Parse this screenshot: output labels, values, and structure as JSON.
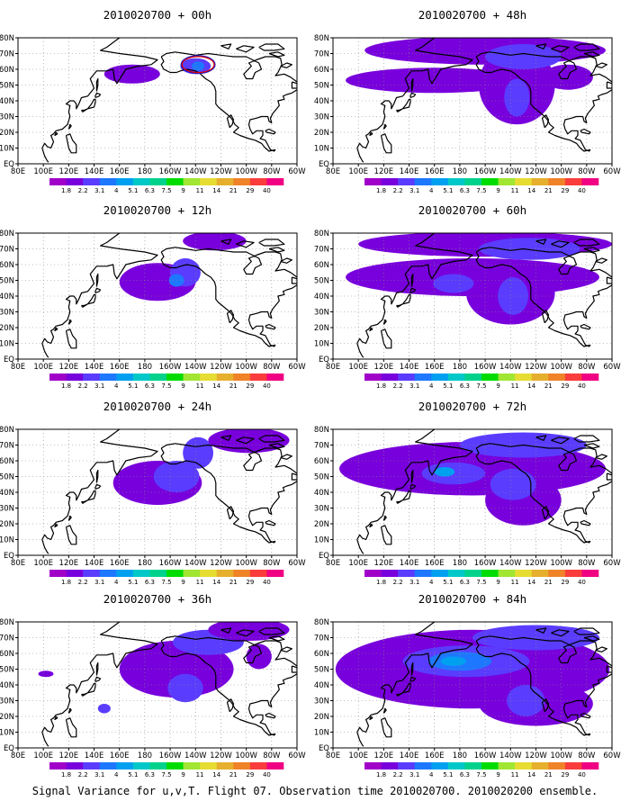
{
  "chart_data": {
    "type": "heatmap",
    "map_type": "filled contour map, North Pacific",
    "caption": "Signal Variance for u,v,T. Flight 07. Observation time 2010020700. 2010020200 ensemble.",
    "x_ticks": [
      "80E",
      "100E",
      "120E",
      "140E",
      "160E",
      "180",
      "160W",
      "140W",
      "120W",
      "100W",
      "80W",
      "60W"
    ],
    "y_ticks": [
      "EQ",
      "10N",
      "20N",
      "30N",
      "40N",
      "50N",
      "60N",
      "70N",
      "80N"
    ],
    "x_range_lon": [
      80,
      300
    ],
    "y_range_lat": [
      0,
      80
    ],
    "grid": true,
    "colorbar": {
      "labels": [
        "1.8",
        "2.2",
        "3.1",
        "4",
        "5.1",
        "6.3",
        "7.5",
        "9",
        "11",
        "14",
        "21",
        "29",
        "40"
      ],
      "colors": [
        "#a000c8",
        "#7800dc",
        "#5a3cff",
        "#1e78ff",
        "#00a0f0",
        "#00c8c8",
        "#00d28c",
        "#00dc00",
        "#a0e632",
        "#e6dc32",
        "#e6af2d",
        "#f08228",
        "#fa3c3c",
        "#f00082"
      ]
    },
    "panels": [
      {
        "title": "2010020700 + 00h",
        "blobs": [
          {
            "lon": 170,
            "lat": 57,
            "rx": 22,
            "ry": 6,
            "level": 1
          },
          {
            "lon": 220,
            "lat": 62,
            "rx": 12,
            "ry": 5,
            "level": 2
          },
          {
            "lon": 222,
            "lat": 62,
            "rx": 5,
            "ry": 3,
            "level": 3
          }
        ],
        "marker": {
          "lon": 222,
          "lat": 63
        }
      },
      {
        "title": "2010020700 + 12h",
        "blobs": [
          {
            "lon": 190,
            "lat": 49,
            "rx": 30,
            "ry": 12,
            "level": 1
          },
          {
            "lon": 212,
            "lat": 55,
            "rx": 12,
            "ry": 9,
            "level": 2
          },
          {
            "lon": 205,
            "lat": 50,
            "rx": 6,
            "ry": 4,
            "level": 3
          },
          {
            "lon": 235,
            "lat": 75,
            "rx": 25,
            "ry": 6,
            "level": 1
          }
        ]
      },
      {
        "title": "2010020700 + 24h",
        "blobs": [
          {
            "lon": 190,
            "lat": 46,
            "rx": 35,
            "ry": 14,
            "level": 1
          },
          {
            "lon": 205,
            "lat": 50,
            "rx": 18,
            "ry": 10,
            "level": 2
          },
          {
            "lon": 222,
            "lat": 65,
            "rx": 12,
            "ry": 10,
            "level": 2
          },
          {
            "lon": 262,
            "lat": 73,
            "rx": 32,
            "ry": 8,
            "level": 1
          }
        ]
      },
      {
        "title": "2010020700 + 36h",
        "blobs": [
          {
            "lon": 205,
            "lat": 50,
            "rx": 45,
            "ry": 18,
            "level": 1
          },
          {
            "lon": 230,
            "lat": 67,
            "rx": 28,
            "ry": 8,
            "level": 2
          },
          {
            "lon": 212,
            "lat": 38,
            "rx": 14,
            "ry": 9,
            "level": 2
          },
          {
            "lon": 148,
            "lat": 25,
            "rx": 5,
            "ry": 3,
            "level": 2
          },
          {
            "lon": 102,
            "lat": 47,
            "rx": 6,
            "ry": 2,
            "level": 1
          },
          {
            "lon": 262,
            "lat": 75,
            "rx": 32,
            "ry": 7,
            "level": 1
          },
          {
            "lon": 270,
            "lat": 58,
            "rx": 10,
            "ry": 8,
            "level": 1
          }
        ]
      },
      {
        "title": "2010020700 + 48h",
        "blobs": [
          {
            "lon": 160,
            "lat": 53,
            "rx": 70,
            "ry": 8,
            "level": 1
          },
          {
            "lon": 200,
            "lat": 72,
            "rx": 95,
            "ry": 9,
            "level": 1
          },
          {
            "lon": 225,
            "lat": 50,
            "rx": 30,
            "ry": 25,
            "level": 1
          },
          {
            "lon": 230,
            "lat": 68,
            "rx": 30,
            "ry": 8,
            "level": 2
          },
          {
            "lon": 225,
            "lat": 42,
            "rx": 10,
            "ry": 12,
            "level": 2
          },
          {
            "lon": 265,
            "lat": 55,
            "rx": 20,
            "ry": 8,
            "level": 1
          }
        ]
      },
      {
        "title": "2010020700 + 60h",
        "blobs": [
          {
            "lon": 190,
            "lat": 52,
            "rx": 100,
            "ry": 12,
            "level": 1
          },
          {
            "lon": 200,
            "lat": 73,
            "rx": 100,
            "ry": 8,
            "level": 1
          },
          {
            "lon": 220,
            "lat": 42,
            "rx": 35,
            "ry": 20,
            "level": 1
          },
          {
            "lon": 175,
            "lat": 48,
            "rx": 16,
            "ry": 6,
            "level": 2
          },
          {
            "lon": 222,
            "lat": 40,
            "rx": 12,
            "ry": 12,
            "level": 2
          },
          {
            "lon": 235,
            "lat": 70,
            "rx": 40,
            "ry": 7,
            "level": 2
          }
        ]
      },
      {
        "title": "2010020700 + 72h",
        "blobs": [
          {
            "lon": 190,
            "lat": 55,
            "rx": 105,
            "ry": 17,
            "level": 1
          },
          {
            "lon": 230,
            "lat": 35,
            "rx": 30,
            "ry": 16,
            "level": 1
          },
          {
            "lon": 175,
            "lat": 52,
            "rx": 25,
            "ry": 7,
            "level": 2
          },
          {
            "lon": 222,
            "lat": 45,
            "rx": 18,
            "ry": 10,
            "level": 2
          },
          {
            "lon": 230,
            "lat": 70,
            "rx": 50,
            "ry": 8,
            "level": 2
          },
          {
            "lon": 168,
            "lat": 53,
            "rx": 8,
            "ry": 3,
            "level": 4
          }
        ]
      },
      {
        "title": "2010020700 + 84h",
        "blobs": [
          {
            "lon": 190,
            "lat": 50,
            "rx": 108,
            "ry": 25,
            "level": 1
          },
          {
            "lon": 240,
            "lat": 28,
            "rx": 45,
            "ry": 14,
            "level": 1
          },
          {
            "lon": 185,
            "lat": 55,
            "rx": 50,
            "ry": 10,
            "level": 2
          },
          {
            "lon": 180,
            "lat": 55,
            "rx": 25,
            "ry": 6,
            "level": 3
          },
          {
            "lon": 175,
            "lat": 55,
            "rx": 10,
            "ry": 3,
            "level": 4
          },
          {
            "lon": 240,
            "lat": 70,
            "rx": 50,
            "ry": 8,
            "level": 2
          },
          {
            "lon": 232,
            "lat": 30,
            "rx": 15,
            "ry": 10,
            "level": 2
          }
        ]
      }
    ]
  }
}
